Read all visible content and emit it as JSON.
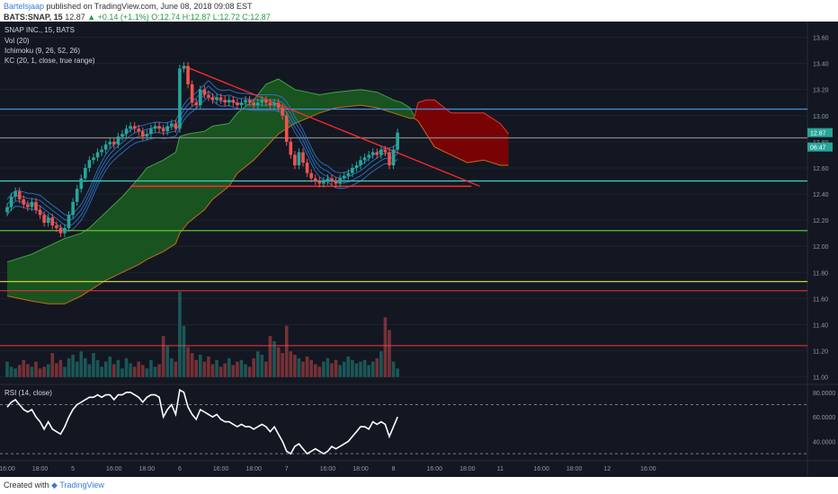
{
  "header": {
    "author": "Bartelsjaap",
    "published_text": "published on TradingView.com, June 08, 2018 09:08 EST",
    "ticker_line": "BATS:SNAP, 15",
    "last": "12.87",
    "change": "▲ +0.14 (+1.1%)",
    "ohlc": "O:12.74 H:12.87 L:12.72 C:12.87"
  },
  "footer": {
    "created_with": "Created with",
    "brand": "TradingView"
  },
  "colors": {
    "background": "#131722",
    "up": "#26a69a",
    "down": "#ef5350",
    "cloud_bull": "#1b5e20",
    "cloud_bear": "#8b0000",
    "keltner": "#2e7bcf",
    "rsi_line": "#ffffff",
    "trendline": "#ff2b2b",
    "hline_blue": "#4a90d9",
    "hline_cyan": "#3ad6c7",
    "hline_green": "#5fbf3a",
    "hline_yellow": "#c8d23a",
    "hline_red": "#e03030"
  },
  "chart_data": {
    "type": "candlestick",
    "symbol": "SNAP INC., 15, BATS",
    "indicators": [
      "Vol (20)",
      "Ichimoku (9, 26, 52, 26)",
      "KC (20, 1, close, true range)"
    ],
    "rsi_label": "RSI (14, close)",
    "price_axis": {
      "ticks": [
        13.6,
        13.4,
        13.2,
        13.0,
        12.8,
        12.6,
        12.4,
        12.2,
        12.0,
        11.8,
        11.6,
        11.4,
        11.2,
        11.0
      ],
      "tick_labels": [
        "13.60",
        "13.40",
        "13.20",
        "13.00",
        "12.80",
        "12.60",
        "12.40",
        "12.20",
        "12.00",
        "11.80",
        "11.60",
        "11.40",
        "11.20",
        "11.00"
      ],
      "range": [
        10.95,
        13.72
      ]
    },
    "price_labels": [
      {
        "text": "12.87",
        "value": 12.87
      },
      {
        "text": "06:47",
        "value": 12.76
      }
    ],
    "rsi_axis": {
      "ticks": [
        80,
        60,
        40
      ],
      "tick_labels": [
        "80.0000",
        "60.0000",
        "40.0000"
      ],
      "range": [
        25,
        85
      ],
      "bands": [
        70,
        30
      ]
    },
    "time_axis": {
      "labels": [
        "16:00",
        "18:00",
        "5",
        "16:00",
        "18:00",
        "6",
        "16:00",
        "18:00",
        "7",
        "16:00",
        "18:00",
        "8",
        "16:00",
        "18:00",
        "11",
        "16:00",
        "18:00",
        "12",
        "16:00"
      ],
      "positions": [
        0,
        8,
        16,
        26,
        34,
        42,
        52,
        60,
        68,
        78,
        86,
        94,
        104,
        112,
        120,
        130,
        138,
        146,
        156
      ]
    },
    "horizontal_levels": [
      {
        "value": 13.05,
        "color": "#4a90d9"
      },
      {
        "value": 12.83,
        "color": "#888888"
      },
      {
        "value": 12.5,
        "color": "#3ad6c7"
      },
      {
        "value": 12.12,
        "color": "#5fbf3a"
      },
      {
        "value": 11.73,
        "color": "#c8d23a"
      },
      {
        "value": 11.66,
        "color": "#e03030"
      },
      {
        "value": 11.24,
        "color": "#e03030"
      }
    ],
    "support_segment": {
      "x0": 30,
      "x1": 113,
      "value": 12.46
    },
    "trendline": {
      "x0": 43,
      "y0": 13.38,
      "x1": 115,
      "y1": 12.46
    },
    "close": [
      12.3,
      12.38,
      12.42,
      12.36,
      12.32,
      12.3,
      12.34,
      12.28,
      12.24,
      12.18,
      12.22,
      12.16,
      12.14,
      12.1,
      12.14,
      12.24,
      12.34,
      12.44,
      12.52,
      12.6,
      12.66,
      12.68,
      12.72,
      12.74,
      12.78,
      12.8,
      12.78,
      12.84,
      12.86,
      12.9,
      12.92,
      12.9,
      12.88,
      12.84,
      12.86,
      12.9,
      12.92,
      12.9,
      12.88,
      12.92,
      12.94,
      12.9,
      13.36,
      13.38,
      13.24,
      13.1,
      13.08,
      13.2,
      13.16,
      13.14,
      13.12,
      13.14,
      13.12,
      13.1,
      13.12,
      13.1,
      13.08,
      13.1,
      13.12,
      13.1,
      13.08,
      13.1,
      13.12,
      13.1,
      13.08,
      13.1,
      13.06,
      13.0,
      12.8,
      12.7,
      12.62,
      12.72,
      12.64,
      12.56,
      12.52,
      12.5,
      12.48,
      12.5,
      12.52,
      12.5,
      12.48,
      12.52,
      12.54,
      12.56,
      12.6,
      12.62,
      12.66,
      12.68,
      12.7,
      12.72,
      12.7,
      12.74,
      12.72,
      12.62,
      12.74,
      12.87
    ],
    "volume": [
      0.18,
      0.12,
      0.1,
      0.14,
      0.2,
      0.15,
      0.12,
      0.18,
      0.1,
      0.12,
      0.15,
      0.28,
      0.16,
      0.2,
      0.12,
      0.22,
      0.26,
      0.18,
      0.3,
      0.22,
      0.15,
      0.28,
      0.2,
      0.12,
      0.18,
      0.24,
      0.15,
      0.2,
      0.1,
      0.22,
      0.16,
      0.12,
      0.18,
      0.14,
      0.1,
      0.2,
      0.12,
      0.15,
      0.48,
      0.36,
      0.22,
      0.18,
      1.0,
      0.6,
      0.35,
      0.28,
      0.2,
      0.26,
      0.18,
      0.24,
      0.15,
      0.2,
      0.12,
      0.16,
      0.22,
      0.14,
      0.18,
      0.2,
      0.15,
      0.12,
      0.22,
      0.3,
      0.26,
      0.18,
      0.48,
      0.42,
      0.35,
      0.28,
      0.6,
      0.3,
      0.26,
      0.22,
      0.18,
      0.24,
      0.2,
      0.15,
      0.12,
      0.18,
      0.22,
      0.16,
      0.2,
      0.14,
      0.18,
      0.24,
      0.2,
      0.16,
      0.18,
      0.2,
      0.14,
      0.18,
      0.22,
      0.3,
      0.7,
      0.55,
      0.18,
      0.1
    ],
    "rsi": [
      68,
      72,
      74,
      70,
      66,
      64,
      66,
      60,
      56,
      50,
      56,
      50,
      48,
      46,
      52,
      60,
      66,
      70,
      72,
      74,
      76,
      76,
      78,
      76,
      78,
      78,
      74,
      78,
      78,
      80,
      80,
      78,
      76,
      72,
      76,
      78,
      78,
      76,
      60,
      66,
      70,
      62,
      82,
      80,
      68,
      62,
      58,
      66,
      64,
      62,
      60,
      62,
      58,
      56,
      56,
      54,
      52,
      54,
      52,
      52,
      50,
      52,
      54,
      52,
      48,
      52,
      46,
      40,
      32,
      30,
      36,
      38,
      34,
      30,
      32,
      34,
      32,
      30,
      32,
      36,
      34,
      36,
      38,
      40,
      44,
      48,
      52,
      52,
      50,
      56,
      54,
      56,
      54,
      44,
      52,
      60
    ],
    "cloud_bull_top": [
      [
        0,
        11.88
      ],
      [
        6,
        11.94
      ],
      [
        10,
        12.0
      ],
      [
        14,
        12.06
      ],
      [
        18,
        12.1
      ],
      [
        20,
        12.14
      ],
      [
        24,
        12.26
      ],
      [
        28,
        12.38
      ],
      [
        32,
        12.52
      ],
      [
        34,
        12.6
      ],
      [
        38,
        12.66
      ],
      [
        41,
        12.72
      ],
      [
        42,
        12.84
      ],
      [
        44,
        12.86
      ],
      [
        48,
        12.88
      ],
      [
        50,
        12.92
      ],
      [
        54,
        12.94
      ],
      [
        56,
        13.02
      ],
      [
        60,
        13.12
      ],
      [
        63,
        13.24
      ],
      [
        66,
        13.28
      ],
      [
        70,
        13.2
      ],
      [
        76,
        13.16
      ],
      [
        80,
        13.18
      ],
      [
        86,
        13.2
      ],
      [
        90,
        13.18
      ],
      [
        94,
        13.12
      ],
      [
        96,
        13.1
      ],
      [
        98,
        13.06
      ],
      [
        99,
        13.0
      ]
    ],
    "cloud_bull_bottom": [
      [
        0,
        11.62
      ],
      [
        6,
        11.58
      ],
      [
        10,
        11.56
      ],
      [
        14,
        11.56
      ],
      [
        18,
        11.62
      ],
      [
        20,
        11.66
      ],
      [
        24,
        11.74
      ],
      [
        28,
        11.8
      ],
      [
        32,
        11.86
      ],
      [
        34,
        11.9
      ],
      [
        38,
        11.96
      ],
      [
        41,
        12.02
      ],
      [
        42,
        12.1
      ],
      [
        44,
        12.18
      ],
      [
        48,
        12.28
      ],
      [
        50,
        12.36
      ],
      [
        54,
        12.46
      ],
      [
        56,
        12.56
      ],
      [
        60,
        12.66
      ],
      [
        63,
        12.76
      ],
      [
        66,
        12.86
      ],
      [
        70,
        12.94
      ],
      [
        76,
        13.02
      ],
      [
        80,
        13.06
      ],
      [
        86,
        13.08
      ],
      [
        90,
        13.06
      ],
      [
        94,
        13.02
      ],
      [
        96,
        13.0
      ],
      [
        98,
        12.98
      ],
      [
        99,
        12.98
      ]
    ],
    "cloud_bear_top": [
      [
        99,
        12.98
      ],
      [
        100,
        13.1
      ],
      [
        102,
        13.12
      ],
      [
        104,
        13.12
      ],
      [
        108,
        13.02
      ],
      [
        112,
        13.02
      ],
      [
        116,
        13.02
      ],
      [
        120,
        12.94
      ],
      [
        122,
        12.86
      ]
    ],
    "cloud_bear_bottom": [
      [
        99,
        12.98
      ],
      [
        100,
        12.96
      ],
      [
        102,
        12.86
      ],
      [
        104,
        12.76
      ],
      [
        108,
        12.7
      ],
      [
        112,
        12.64
      ],
      [
        116,
        12.66
      ],
      [
        120,
        12.62
      ],
      [
        122,
        12.62
      ]
    ],
    "lagging_span": [
      [
        0,
        11.62
      ],
      [
        10,
        11.66
      ],
      [
        16,
        11.72
      ],
      [
        22,
        11.84
      ],
      [
        30,
        11.9
      ],
      [
        40,
        12.1
      ],
      [
        50,
        12.3
      ],
      [
        60,
        12.54
      ],
      [
        64,
        12.6
      ],
      [
        68,
        12.8
      ],
      [
        70,
        12.88
      ],
      [
        72,
        12.7
      ],
      [
        76,
        12.62
      ],
      [
        80,
        12.56
      ],
      [
        86,
        12.6
      ],
      [
        92,
        12.62
      ],
      [
        96,
        12.58
      ],
      [
        98,
        12.6
      ]
    ]
  }
}
